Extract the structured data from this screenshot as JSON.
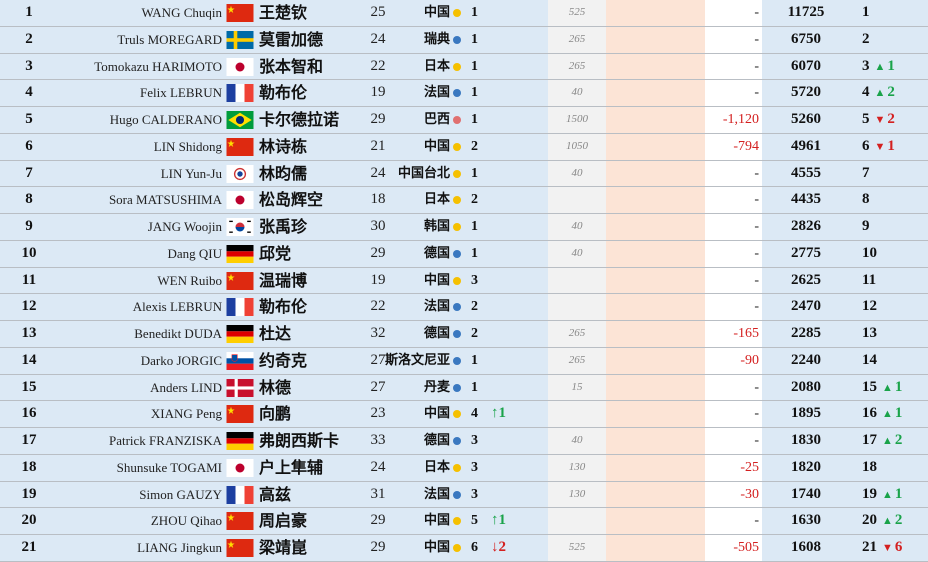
{
  "colors": {
    "asia_dot": "#f5c000",
    "europe_dot": "#3a78c0",
    "americas_dot": "#e07070",
    "up": "#1aa34a",
    "down": "#d42020"
  },
  "rows": [
    {
      "rank": "1",
      "en": "WANG Chuqin",
      "flag": "china-flag",
      "cn": "王楚钦",
      "age": "25",
      "country": "中国",
      "dot": "asia",
      "count": "1",
      "move": "",
      "move_dir": "",
      "grey": "525",
      "delta": "-",
      "points": "11725",
      "new_rank": "1",
      "change": "",
      "change_dir": ""
    },
    {
      "rank": "2",
      "en": "Truls MOREGARD",
      "flag": "sweden-flag",
      "cn": "莫雷加德",
      "age": "24",
      "country": "瑞典",
      "dot": "europe",
      "count": "1",
      "move": "",
      "move_dir": "",
      "grey": "265",
      "delta": "-",
      "points": "6750",
      "new_rank": "2",
      "change": "",
      "change_dir": ""
    },
    {
      "rank": "3",
      "en": "Tomokazu HARIMOTO",
      "flag": "japan-flag",
      "cn": "张本智和",
      "age": "22",
      "country": "日本",
      "dot": "asia",
      "count": "1",
      "move": "",
      "move_dir": "",
      "grey": "265",
      "delta": "-",
      "points": "6070",
      "new_rank": "3",
      "change": "1",
      "change_dir": "up"
    },
    {
      "rank": "4",
      "en": "Felix LEBRUN",
      "flag": "france-flag",
      "cn": "勒布伦",
      "age": "19",
      "country": "法国",
      "dot": "europe",
      "count": "1",
      "move": "",
      "move_dir": "",
      "grey": "40",
      "delta": "-",
      "points": "5720",
      "new_rank": "4",
      "change": "2",
      "change_dir": "up"
    },
    {
      "rank": "5",
      "en": "Hugo CALDERANO",
      "flag": "brazil-flag",
      "cn": "卡尔德拉诺",
      "age": "29",
      "country": "巴西",
      "dot": "americas",
      "count": "1",
      "move": "",
      "move_dir": "",
      "grey": "1500",
      "delta": "-1,120",
      "points": "5260",
      "new_rank": "5",
      "change": "2",
      "change_dir": "down"
    },
    {
      "rank": "6",
      "en": "LIN Shidong",
      "flag": "china-flag",
      "cn": "林诗栋",
      "age": "21",
      "country": "中国",
      "dot": "asia",
      "count": "2",
      "move": "",
      "move_dir": "",
      "grey": "1050",
      "delta": "-794",
      "points": "4961",
      "new_rank": "6",
      "change": "1",
      "change_dir": "down"
    },
    {
      "rank": "7",
      "en": "LIN Yun-Ju",
      "flag": "chinese-taipei-flag",
      "cn": "林昀儒",
      "age": "24",
      "country": "中国台北",
      "dot": "asia",
      "count": "1",
      "move": "",
      "move_dir": "",
      "grey": "40",
      "delta": "-",
      "points": "4555",
      "new_rank": "7",
      "change": "",
      "change_dir": ""
    },
    {
      "rank": "8",
      "en": "Sora MATSUSHIMA",
      "flag": "japan-flag",
      "cn": "松岛辉空",
      "age": "18",
      "country": "日本",
      "dot": "asia",
      "count": "2",
      "move": "",
      "move_dir": "",
      "grey": "",
      "delta": "-",
      "points": "4435",
      "new_rank": "8",
      "change": "",
      "change_dir": ""
    },
    {
      "rank": "9",
      "en": "JANG Woojin",
      "flag": "korea-flag",
      "cn": "张禹珍",
      "age": "30",
      "country": "韩国",
      "dot": "asia",
      "count": "1",
      "move": "",
      "move_dir": "",
      "grey": "40",
      "delta": "-",
      "points": "2826",
      "new_rank": "9",
      "change": "",
      "change_dir": ""
    },
    {
      "rank": "10",
      "en": "Dang QIU",
      "flag": "germany-flag",
      "cn": "邱党",
      "age": "29",
      "country": "德国",
      "dot": "europe",
      "count": "1",
      "move": "",
      "move_dir": "",
      "grey": "40",
      "delta": "-",
      "points": "2775",
      "new_rank": "10",
      "change": "",
      "change_dir": ""
    },
    {
      "rank": "11",
      "en": "WEN Ruibo",
      "flag": "china-flag",
      "cn": "温瑞博",
      "age": "19",
      "country": "中国",
      "dot": "asia",
      "count": "3",
      "move": "",
      "move_dir": "",
      "grey": "",
      "delta": "-",
      "points": "2625",
      "new_rank": "11",
      "change": "",
      "change_dir": ""
    },
    {
      "rank": "12",
      "en": "Alexis LEBRUN",
      "flag": "france-flag",
      "cn": "勒布伦",
      "age": "22",
      "country": "法国",
      "dot": "europe",
      "count": "2",
      "move": "",
      "move_dir": "",
      "grey": "",
      "delta": "-",
      "points": "2470",
      "new_rank": "12",
      "change": "",
      "change_dir": ""
    },
    {
      "rank": "13",
      "en": "Benedikt DUDA",
      "flag": "germany-flag",
      "cn": "杜达",
      "age": "32",
      "country": "德国",
      "dot": "europe",
      "count": "2",
      "move": "",
      "move_dir": "",
      "grey": "265",
      "delta": "-165",
      "points": "2285",
      "new_rank": "13",
      "change": "",
      "change_dir": ""
    },
    {
      "rank": "14",
      "en": "Darko JORGIC",
      "flag": "slovenia-flag",
      "cn": "约奇克",
      "age": "27",
      "country": "斯洛文尼亚",
      "dot": "europe",
      "count": "1",
      "move": "",
      "move_dir": "",
      "grey": "265",
      "delta": "-90",
      "points": "2240",
      "new_rank": "14",
      "change": "",
      "change_dir": ""
    },
    {
      "rank": "15",
      "en": "Anders LIND",
      "flag": "denmark-flag",
      "cn": "林德",
      "age": "27",
      "country": "丹麦",
      "dot": "europe",
      "count": "1",
      "move": "",
      "move_dir": "",
      "grey": "15",
      "delta": "-",
      "points": "2080",
      "new_rank": "15",
      "change": "1",
      "change_dir": "up"
    },
    {
      "rank": "16",
      "en": "XIANG Peng",
      "flag": "china-flag",
      "cn": "向鹏",
      "age": "23",
      "country": "中国",
      "dot": "asia",
      "count": "4",
      "move": "1",
      "move_dir": "up",
      "grey": "",
      "delta": "-",
      "points": "1895",
      "new_rank": "16",
      "change": "1",
      "change_dir": "up"
    },
    {
      "rank": "17",
      "en": "Patrick FRANZISKA",
      "flag": "germany-flag",
      "cn": "弗朗西斯卡",
      "age": "33",
      "country": "德国",
      "dot": "europe",
      "count": "3",
      "move": "",
      "move_dir": "",
      "grey": "40",
      "delta": "-",
      "points": "1830",
      "new_rank": "17",
      "change": "2",
      "change_dir": "up"
    },
    {
      "rank": "18",
      "en": "Shunsuke TOGAMI",
      "flag": "japan-flag",
      "cn": "户上隼辅",
      "age": "24",
      "country": "日本",
      "dot": "asia",
      "count": "3",
      "move": "",
      "move_dir": "",
      "grey": "130",
      "delta": "-25",
      "points": "1820",
      "new_rank": "18",
      "change": "",
      "change_dir": ""
    },
    {
      "rank": "19",
      "en": "Simon GAUZY",
      "flag": "france-flag",
      "cn": "高兹",
      "age": "31",
      "country": "法国",
      "dot": "europe",
      "count": "3",
      "move": "",
      "move_dir": "",
      "grey": "130",
      "delta": "-30",
      "points": "1740",
      "new_rank": "19",
      "change": "1",
      "change_dir": "up"
    },
    {
      "rank": "20",
      "en": "ZHOU Qihao",
      "flag": "china-flag",
      "cn": "周启豪",
      "age": "29",
      "country": "中国",
      "dot": "asia",
      "count": "5",
      "move": "1",
      "move_dir": "up",
      "grey": "",
      "delta": "-",
      "points": "1630",
      "new_rank": "20",
      "change": "2",
      "change_dir": "up"
    },
    {
      "rank": "21",
      "en": "LIANG Jingkun",
      "flag": "china-flag",
      "cn": "梁靖崑",
      "age": "29",
      "country": "中国",
      "dot": "asia",
      "count": "6",
      "move": "2",
      "move_dir": "down",
      "grey": "525",
      "delta": "-505",
      "points": "1608",
      "new_rank": "21",
      "change": "6",
      "change_dir": "down"
    }
  ]
}
